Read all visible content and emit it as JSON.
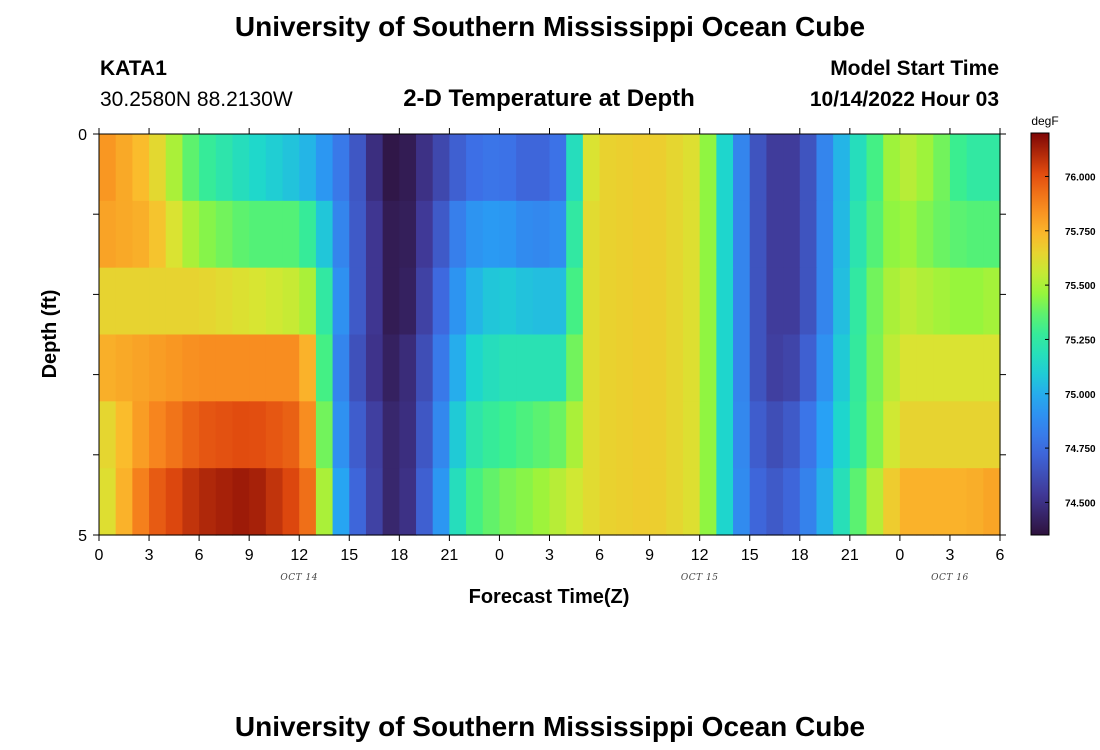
{
  "header": {
    "title": "University of Southern Mississippi Ocean Cube",
    "station": "KATA1",
    "coords": "30.2580N  88.2130W",
    "subtitle": "2-D Temperature at Depth",
    "model_label": "Model Start Time",
    "model_time": "10/14/2022 Hour 03"
  },
  "footer": {
    "title": "University of Southern Mississippi Ocean Cube"
  },
  "chart_data": {
    "type": "heatmap",
    "title": "2-D Temperature at Depth",
    "xlabel": "Forecast Time(Z)",
    "ylabel": "Depth (ft)",
    "x_ticks": [
      "0",
      "3",
      "6",
      "9",
      "12",
      "15",
      "18",
      "21",
      "0",
      "3",
      "6",
      "9",
      "12",
      "15",
      "18",
      "21",
      "0",
      "3",
      "6"
    ],
    "date_labels": [
      {
        "label": "OCT 14",
        "at_tick": 4
      },
      {
        "label": "OCT 15",
        "at_tick": 12
      },
      {
        "label": "OCT 16",
        "at_tick": 17
      }
    ],
    "y_ticks": [
      "0",
      "5"
    ],
    "ylim": [
      0,
      5
    ],
    "colorbar": {
      "unit": "degF",
      "min": 74.35,
      "max": 76.2,
      "ticks": [
        "74.500",
        "74.750",
        "75.000",
        "75.250",
        "75.500",
        "75.750",
        "76.000"
      ]
    },
    "hours": 54,
    "depth_layers": 5,
    "keyframes": [
      {
        "t": 0,
        "v": [
          75.85,
          75.8,
          75.65,
          75.75,
          75.6,
          75.55
        ]
      },
      {
        "t": 3,
        "v": [
          75.7,
          75.75,
          75.65,
          75.8,
          75.85,
          75.95
        ]
      },
      {
        "t": 6,
        "v": [
          75.3,
          75.45,
          75.65,
          75.85,
          75.98,
          76.1
        ]
      },
      {
        "t": 9,
        "v": [
          75.15,
          75.35,
          75.6,
          75.85,
          76.02,
          76.15
        ]
      },
      {
        "t": 12,
        "v": [
          75.05,
          75.35,
          75.55,
          75.85,
          75.95,
          76.0
        ]
      },
      {
        "t": 13,
        "v": [
          75.0,
          75.2,
          75.45,
          75.65,
          75.75,
          75.85
        ]
      },
      {
        "t": 14,
        "v": [
          74.85,
          74.95,
          75.05,
          75.0,
          75.05,
          75.15
        ]
      },
      {
        "t": 15,
        "v": [
          74.75,
          74.75,
          74.75,
          74.7,
          74.75,
          74.8
        ]
      },
      {
        "t": 17,
        "v": [
          74.4,
          74.45,
          74.45,
          74.45,
          74.5,
          74.5
        ]
      },
      {
        "t": 18,
        "v": [
          74.35,
          74.35,
          74.35,
          74.4,
          74.4,
          74.4
        ]
      },
      {
        "t": 20,
        "v": [
          74.55,
          74.6,
          74.65,
          74.7,
          74.75,
          74.8
        ]
      },
      {
        "t": 22,
        "v": [
          74.75,
          74.9,
          75.0,
          75.1,
          75.2,
          75.3
        ]
      },
      {
        "t": 24,
        "v": [
          74.8,
          74.95,
          75.1,
          75.2,
          75.3,
          75.4
        ]
      },
      {
        "t": 26,
        "v": [
          74.7,
          74.85,
          75.05,
          75.2,
          75.35,
          75.45
        ]
      },
      {
        "t": 28,
        "v": [
          74.8,
          74.9,
          75.05,
          75.2,
          75.4,
          75.55
        ]
      },
      {
        "t": 29,
        "v": [
          75.55,
          75.6,
          75.6,
          75.6,
          75.6,
          75.6
        ]
      },
      {
        "t": 30,
        "v": [
          75.65,
          75.65,
          75.65,
          75.65,
          75.65,
          75.65
        ]
      },
      {
        "t": 33,
        "v": [
          75.68,
          75.68,
          75.68,
          75.68,
          75.68,
          75.68
        ]
      },
      {
        "t": 36,
        "v": [
          75.6,
          75.6,
          75.6,
          75.6,
          75.6,
          75.6
        ]
      },
      {
        "t": 37,
        "v": [
          75.3,
          75.3,
          75.3,
          75.3,
          75.3,
          75.3
        ]
      },
      {
        "t": 38,
        "v": [
          74.95,
          74.95,
          74.95,
          74.95,
          74.95,
          74.95
        ]
      },
      {
        "t": 40,
        "v": [
          74.55,
          74.55,
          74.55,
          74.55,
          74.6,
          74.65
        ]
      },
      {
        "t": 42,
        "v": [
          74.55,
          74.55,
          74.55,
          74.6,
          74.7,
          74.75
        ]
      },
      {
        "t": 44,
        "v": [
          74.95,
          74.95,
          74.95,
          75.0,
          75.05,
          75.1
        ]
      },
      {
        "t": 46,
        "v": [
          75.25,
          75.3,
          75.35,
          75.35,
          75.35,
          75.45
        ]
      },
      {
        "t": 48,
        "v": [
          75.55,
          75.5,
          75.55,
          75.6,
          75.65,
          75.75
        ]
      },
      {
        "t": 50,
        "v": [
          75.45,
          75.4,
          75.5,
          75.6,
          75.65,
          75.75
        ]
      },
      {
        "t": 52,
        "v": [
          75.25,
          75.35,
          75.45,
          75.6,
          75.65,
          75.75
        ]
      },
      {
        "t": 54,
        "v": [
          75.25,
          75.35,
          75.5,
          75.6,
          75.65,
          75.8
        ]
      }
    ]
  }
}
